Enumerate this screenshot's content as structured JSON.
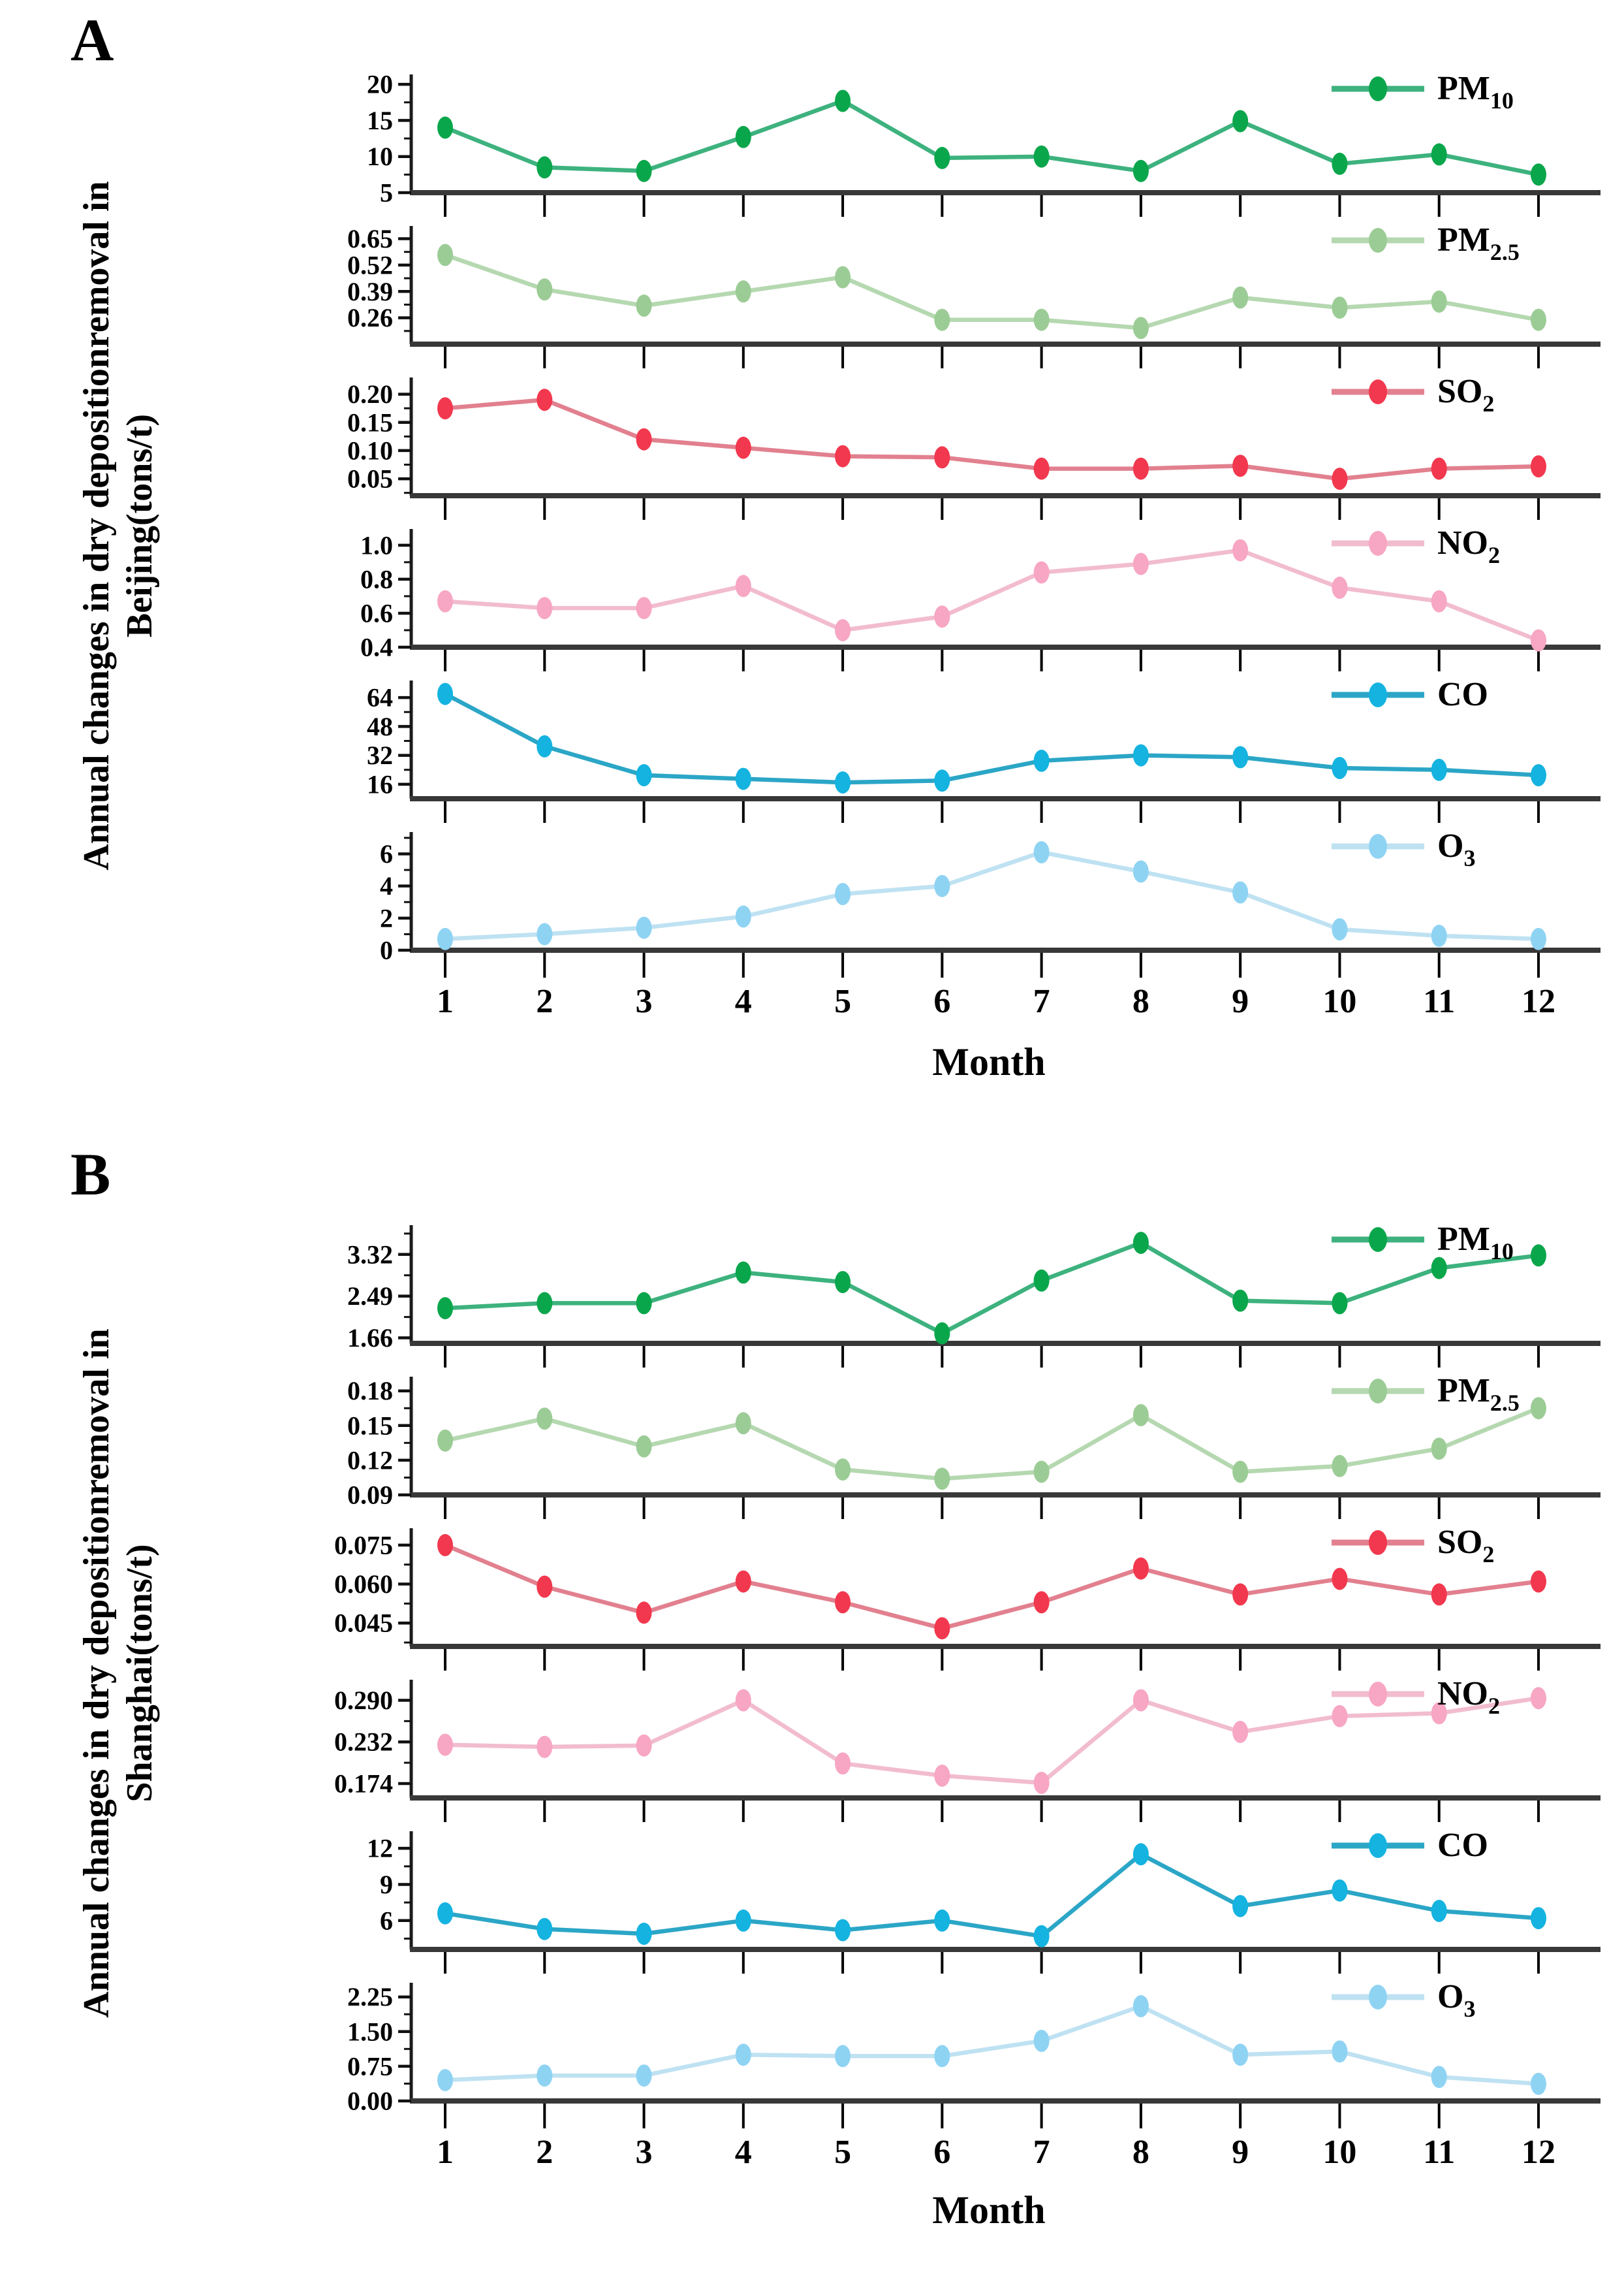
{
  "figure_title": "",
  "chart_data": [
    {
      "type": "line",
      "panel_letter": "A",
      "ylabel_line1": "Annual changes in dry depositionremoval in",
      "ylabel_line2": "Beijing(tons/t)",
      "xlabel": "Month",
      "grid": false,
      "legend_position": "top-right-of-each-subplot",
      "months": [
        "1",
        "2",
        "3",
        "4",
        "5",
        "6",
        "7",
        "8",
        "9",
        "10",
        "11",
        "12"
      ],
      "series": [
        {
          "name": "PM10",
          "legend_main": "PM",
          "legend_sub": "10",
          "dot_color": "#0aa64b",
          "line_color": "#3db27e",
          "ylim": [
            5,
            21
          ],
          "yticks": [
            {
              "v": 20,
              "label": "20"
            },
            {
              "v": 15,
              "label": "15"
            },
            {
              "v": 10,
              "label": "10"
            },
            {
              "v": 5,
              "label": "5"
            }
          ],
          "values": [
            14,
            8.5,
            8,
            12.7,
            17.7,
            9.8,
            10,
            8,
            14.9,
            9,
            10.3,
            7.5
          ]
        },
        {
          "name": "PM2.5",
          "legend_main": "PM",
          "legend_sub": "2.5",
          "dot_color": "#9ccc96",
          "line_color": "#b5d8b0",
          "ylim": [
            0.13,
            0.7
          ],
          "yticks": [
            {
              "v": 0.65,
              "label": "0.65"
            },
            {
              "v": 0.52,
              "label": "0.52"
            },
            {
              "v": 0.39,
              "label": "0.39"
            },
            {
              "v": 0.26,
              "label": "0.26"
            }
          ],
          "values": [
            0.57,
            0.4,
            0.32,
            0.39,
            0.46,
            0.25,
            0.25,
            0.21,
            0.36,
            0.31,
            0.34,
            0.25
          ]
        },
        {
          "name": "SO2",
          "legend_main": "SO",
          "legend_sub": "2",
          "dot_color": "#f2384e",
          "line_color": "#e2808f",
          "ylim": [
            0.02,
            0.225
          ],
          "yticks": [
            {
              "v": 0.2,
              "label": "0.20"
            },
            {
              "v": 0.15,
              "label": "0.15"
            },
            {
              "v": 0.1,
              "label": "0.10"
            },
            {
              "v": 0.05,
              "label": "0.05"
            }
          ],
          "values": [
            0.175,
            0.19,
            0.12,
            0.105,
            0.09,
            0.088,
            0.068,
            0.068,
            0.073,
            0.05,
            0.068,
            0.072
          ]
        },
        {
          "name": "NO2",
          "legend_main": "NO",
          "legend_sub": "2",
          "dot_color": "#f7a6c3",
          "line_color": "#f2bccf",
          "ylim": [
            0.4,
            1.08
          ],
          "yticks": [
            {
              "v": 1.0,
              "label": "1.0"
            },
            {
              "v": 0.8,
              "label": "0.8"
            },
            {
              "v": 0.6,
              "label": "0.6"
            },
            {
              "v": 0.4,
              "label": "0.4"
            }
          ],
          "values": [
            0.67,
            0.63,
            0.63,
            0.76,
            0.5,
            0.58,
            0.84,
            0.89,
            0.97,
            0.75,
            0.67,
            0.44
          ]
        },
        {
          "name": "CO",
          "legend_main": "CO",
          "legend_sub": "",
          "dot_color": "#14b3e0",
          "line_color": "#2ba6c6",
          "ylim": [
            8,
            72
          ],
          "yticks": [
            {
              "v": 64,
              "label": "64"
            },
            {
              "v": 48,
              "label": "48"
            },
            {
              "v": 32,
              "label": "32"
            },
            {
              "v": 16,
              "label": "16"
            }
          ],
          "values": [
            66,
            37,
            21,
            19,
            17,
            18,
            29,
            32,
            31,
            25,
            24,
            21
          ]
        },
        {
          "name": "O3",
          "legend_main": "O",
          "legend_sub": "3",
          "dot_color": "#8fd3f3",
          "line_color": "#bfe2f2",
          "ylim": [
            0,
            7.2
          ],
          "yticks": [
            {
              "v": 6,
              "label": "6"
            },
            {
              "v": 4,
              "label": "4"
            },
            {
              "v": 2,
              "label": "2"
            },
            {
              "v": 0,
              "label": "0"
            }
          ],
          "values": [
            0.7,
            1.0,
            1.4,
            2.1,
            3.5,
            4.0,
            6.1,
            4.9,
            3.6,
            1.3,
            0.9,
            0.7
          ]
        }
      ]
    },
    {
      "type": "line",
      "panel_letter": "B",
      "ylabel_line1": "Annual changes in dry depositionremoval in",
      "ylabel_line2": "Shanghai(tons/t)",
      "xlabel": "Month",
      "grid": false,
      "legend_position": "top-right-of-each-subplot",
      "months": [
        "1",
        "2",
        "3",
        "4",
        "5",
        "6",
        "7",
        "8",
        "9",
        "10",
        "11",
        "12"
      ],
      "series": [
        {
          "name": "PM10",
          "legend_main": "PM",
          "legend_sub": "10",
          "dot_color": "#0aa64b",
          "line_color": "#3db27e",
          "ylim": [
            1.55,
            3.85
          ],
          "yticks": [
            {
              "v": 3.32,
              "label": "3.32"
            },
            {
              "v": 2.49,
              "label": "2.49"
            },
            {
              "v": 1.66,
              "label": "1.66"
            }
          ],
          "values": [
            2.25,
            2.35,
            2.35,
            2.96,
            2.77,
            1.75,
            2.8,
            3.55,
            2.4,
            2.35,
            3.05,
            3.3
          ]
        },
        {
          "name": "PM2.5",
          "legend_main": "PM",
          "legend_sub": "2.5",
          "dot_color": "#9ccc96",
          "line_color": "#b5d8b0",
          "ylim": [
            0.09,
            0.19
          ],
          "yticks": [
            {
              "v": 0.18,
              "label": "0.18"
            },
            {
              "v": 0.15,
              "label": "0.15"
            },
            {
              "v": 0.12,
              "label": "0.12"
            },
            {
              "v": 0.09,
              "label": "0.09"
            }
          ],
          "values": [
            0.137,
            0.156,
            0.132,
            0.152,
            0.112,
            0.104,
            0.11,
            0.159,
            0.11,
            0.115,
            0.13,
            0.165
          ]
        },
        {
          "name": "SO2",
          "legend_main": "SO",
          "legend_sub": "2",
          "dot_color": "#f2384e",
          "line_color": "#e2808f",
          "ylim": [
            0.036,
            0.0805
          ],
          "yticks": [
            {
              "v": 0.075,
              "label": "0.075"
            },
            {
              "v": 0.06,
              "label": "0.060"
            },
            {
              "v": 0.045,
              "label": "0.045"
            }
          ],
          "values": [
            0.075,
            0.059,
            0.049,
            0.061,
            0.053,
            0.043,
            0.053,
            0.066,
            0.056,
            0.062,
            0.056,
            0.061
          ]
        },
        {
          "name": "NO2",
          "legend_main": "NO",
          "legend_sub": "2",
          "dot_color": "#f7a6c3",
          "line_color": "#f2bccf",
          "ylim": [
            0.154,
            0.315
          ],
          "yticks": [
            {
              "v": 0.29,
              "label": "0.290"
            },
            {
              "v": 0.232,
              "label": "0.232"
            },
            {
              "v": 0.174,
              "label": "0.174"
            }
          ],
          "values": [
            0.228,
            0.225,
            0.227,
            0.29,
            0.202,
            0.185,
            0.175,
            0.29,
            0.246,
            0.268,
            0.272,
            0.293
          ]
        },
        {
          "name": "CO",
          "legend_main": "CO",
          "legend_sub": "",
          "dot_color": "#14b3e0",
          "line_color": "#2ba6c6",
          "ylim": [
            3.6,
            13.2
          ],
          "yticks": [
            {
              "v": 12,
              "label": "12"
            },
            {
              "v": 9,
              "label": "9"
            },
            {
              "v": 6,
              "label": "6"
            }
          ],
          "values": [
            6.6,
            5.3,
            4.9,
            6.0,
            5.2,
            6.0,
            4.7,
            11.5,
            7.2,
            8.5,
            6.8,
            6.2
          ]
        },
        {
          "name": "O3",
          "legend_main": "O",
          "legend_sub": "3",
          "dot_color": "#8fd3f3",
          "line_color": "#bfe2f2",
          "ylim": [
            0,
            2.5
          ],
          "yticks": [
            {
              "v": 2.25,
              "label": "2.25"
            },
            {
              "v": 1.5,
              "label": "1.50"
            },
            {
              "v": 0.75,
              "label": "0.75"
            },
            {
              "v": 0.0,
              "label": "0.00"
            }
          ],
          "values": [
            0.45,
            0.55,
            0.55,
            1.0,
            0.97,
            0.97,
            1.3,
            2.05,
            1.0,
            1.07,
            0.52,
            0.37
          ]
        }
      ]
    }
  ]
}
